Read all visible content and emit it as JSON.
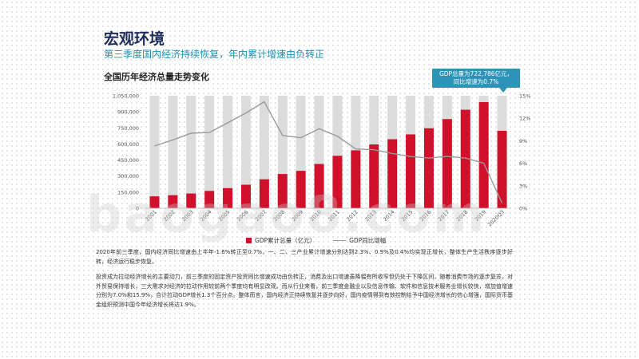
{
  "header": {
    "title": "宏观环境",
    "subtitle": "第三季度国内经济持续恢复，年内累计增速由负转正",
    "chart_heading": "全国历年经济总量走势变化"
  },
  "callout": {
    "line1": "GDP总量为722,786亿元，",
    "line2": "同比增速为0.7%"
  },
  "watermark": "baogao8.com",
  "paragraphs": [
    "2020年前三季度，国内经济同比增速由上半年-1.6%转正至0.7%，一、二、三产业累计增速分别达到2.3%、0.9%及0.4%均实现正增长，整体生产生活秩序逐步好转，经济运行稳步恢复。",
    "投资成为拉动经济增长的主要动力，前三季度的固定资产投资同比增速成功由负转正，消费及出口增速虽降幅有所收窄但仍处于下降区间，随着消费市场的逐步复苏，对外贸易保持增长，三大需求对经济的拉动作用较前两个季度均有明显改观。而从行业来看，前三季度金融业以及信息传输、软件和信息技术服务业增长较快，增加值增速分别为7.0%和15.9%，合计拉动GDP增长1.3个百分点。整体而言，国内经济正持续恢复并逐步向好，国内疫情得到有效控制给予中国经济增长的信心增强，国际货币基金组织预测中国今年经济增长将达1.9%。"
  ],
  "chart_data": {
    "type": "bar",
    "categories": [
      "2001",
      "2002",
      "2003",
      "2004",
      "2005",
      "2006",
      "2007",
      "2008",
      "2009",
      "2010",
      "2011",
      "2012",
      "2013",
      "2014",
      "2015",
      "2016",
      "2017",
      "2018",
      "2019",
      "2020Q3"
    ],
    "series": [
      {
        "name": "GDP累计总量（亿元）",
        "type": "bar",
        "axis": "left",
        "values": [
          110863,
          121717,
          137422,
          161840,
          187319,
          219439,
          270232,
          319516,
          349081,
          413030,
          489301,
          540367,
          595244,
          643974,
          689052,
          746395,
          832036,
          919281,
          990865,
          722786
        ]
      },
      {
        "name": "GDP同比增幅",
        "type": "line",
        "axis": "right",
        "values": [
          8.3,
          9.1,
          10.0,
          10.1,
          11.4,
          12.7,
          14.2,
          9.7,
          9.4,
          10.6,
          9.6,
          7.9,
          7.8,
          7.3,
          6.9,
          6.7,
          6.9,
          6.7,
          6.0,
          0.7
        ]
      }
    ],
    "background_bar_value": 1050000,
    "left_axis": {
      "min": 0,
      "max": 1050000,
      "ticks": [
        "0",
        "150,000",
        "300,000",
        "450,000",
        "600,000",
        "750,000",
        "900,000",
        "1,050,000"
      ]
    },
    "right_axis": {
      "min": 0,
      "max": 15,
      "ticks": [
        "0%",
        "3%",
        "6%",
        "9%",
        "12%",
        "15%"
      ]
    },
    "colors": {
      "bar": "#d1102c",
      "background_bar": "#dcdcdc",
      "line": "#999999"
    },
    "legend": [
      "GDP累计总量（亿元）",
      "GDP同比增幅"
    ]
  }
}
